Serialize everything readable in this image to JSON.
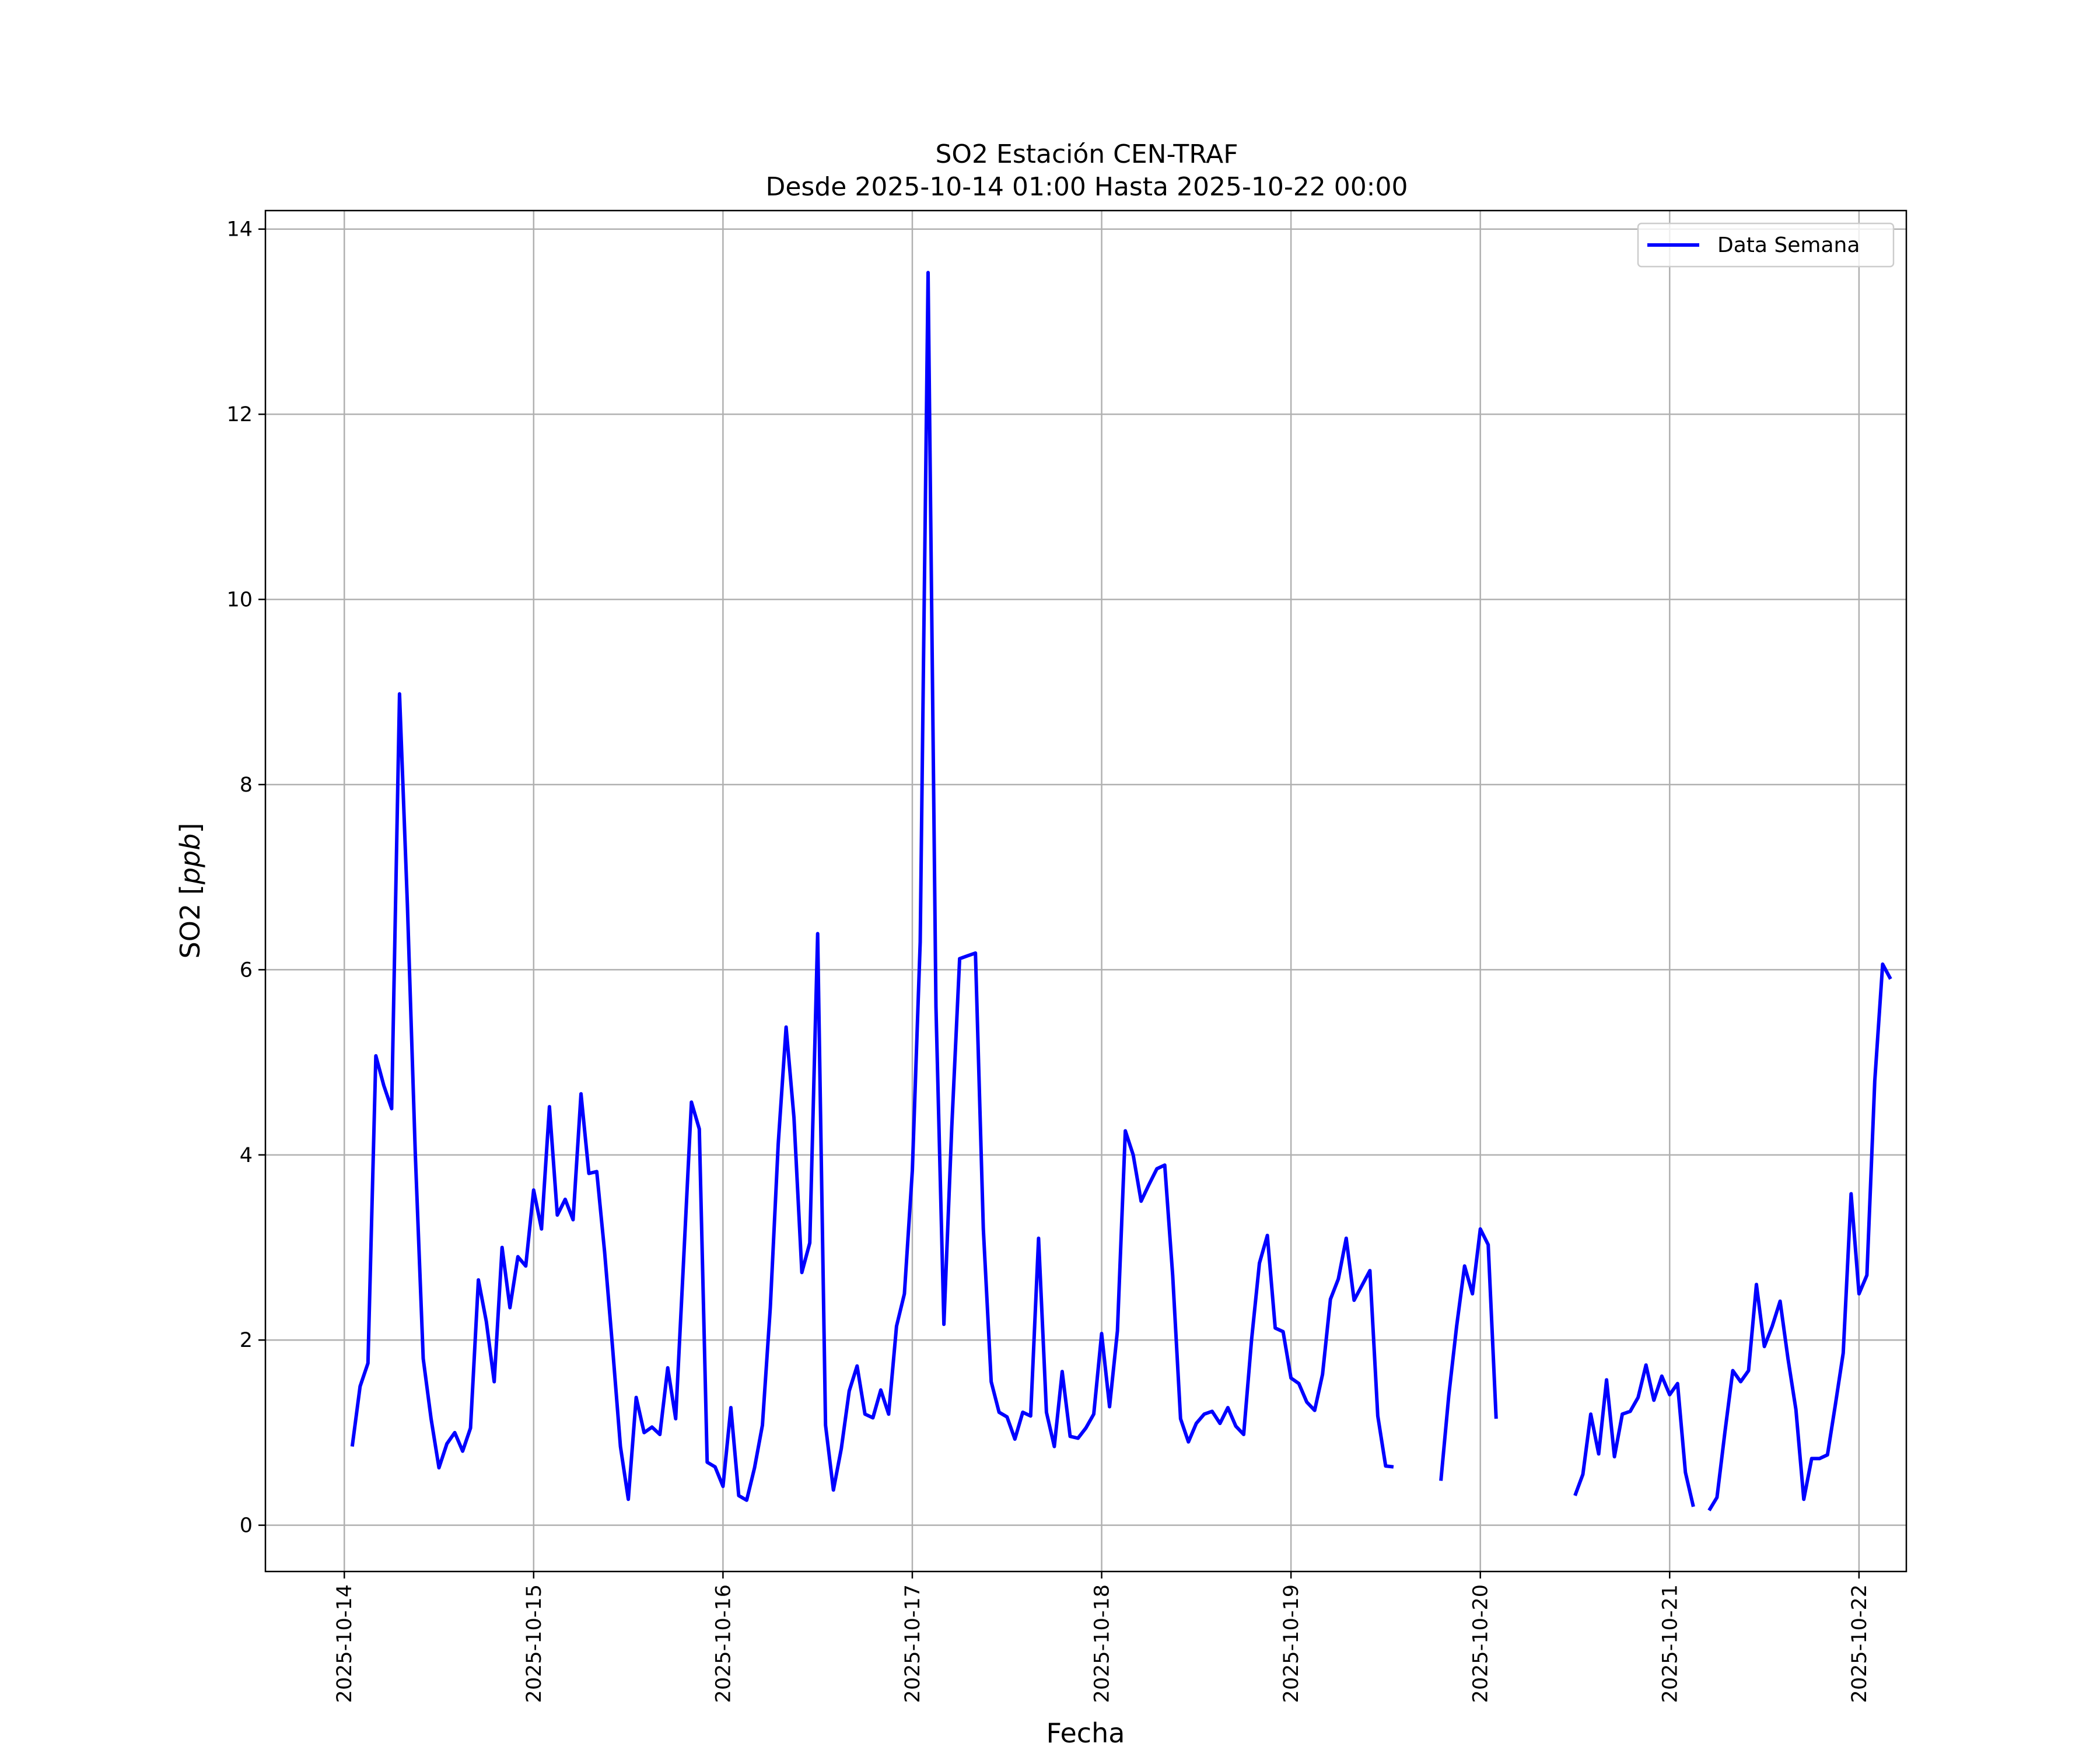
{
  "chart_data": {
    "type": "line",
    "title": "SO2 Estación CEN-TRAF",
    "subtitle": "Desde 2025-10-14 01:00 Hasta 2025-10-22 00:00",
    "xlabel": "Fecha",
    "ylabel": "SO2 [ppb]",
    "ylabel_prefix": "SO2 [",
    "ylabel_unit": "ppb",
    "ylabel_suffix": "]",
    "x_start": "2025-10-14 01:00",
    "x_step_hours": 1,
    "xlim": [
      "2025-10-13 14:00",
      "2025-10-22 06:00"
    ],
    "ylim": [
      -0.5,
      14.2
    ],
    "x_ticks": [
      "2025-10-14",
      "2025-10-15",
      "2025-10-16",
      "2025-10-17",
      "2025-10-18",
      "2025-10-19",
      "2025-10-20",
      "2025-10-21",
      "2025-10-22"
    ],
    "y_ticks": [
      "0",
      "2",
      "4",
      "6",
      "8",
      "10",
      "12",
      "14"
    ],
    "grid": true,
    "legend_position": "upper right",
    "series": [
      {
        "name": "Data Semana",
        "color": "#0000ff",
        "values": [
          0.85,
          1.5,
          1.75,
          5.07,
          4.75,
          4.5,
          8.98,
          6.7,
          4.0,
          1.8,
          1.15,
          0.62,
          0.88,
          1.0,
          0.8,
          1.05,
          2.65,
          2.2,
          1.55,
          3.0,
          2.35,
          2.9,
          2.8,
          3.62,
          3.2,
          4.52,
          3.35,
          3.52,
          3.3,
          4.66,
          3.8,
          3.82,
          2.95,
          1.92,
          0.85,
          0.28,
          1.38,
          1.0,
          1.06,
          0.98,
          1.7,
          1.15,
          2.85,
          4.57,
          4.28,
          0.68,
          0.63,
          0.42,
          1.27,
          0.32,
          0.27,
          0.62,
          1.08,
          2.35,
          4.12,
          5.38,
          4.4,
          2.73,
          3.05,
          6.39,
          1.08,
          0.38,
          0.83,
          1.45,
          1.72,
          1.2,
          1.16,
          1.46,
          1.2,
          2.15,
          2.5,
          3.83,
          6.3,
          13.53,
          5.6,
          2.17,
          4.3,
          6.12,
          6.15,
          6.18,
          3.2,
          1.55,
          1.22,
          1.17,
          0.93,
          1.22,
          1.18,
          3.1,
          1.22,
          0.85,
          1.66,
          0.96,
          0.94,
          1.05,
          1.2,
          2.07,
          1.28,
          2.1,
          4.26,
          4.0,
          3.5,
          3.68,
          3.85,
          3.89,
          2.7,
          1.15,
          0.9,
          1.1,
          1.2,
          1.23,
          1.1,
          1.27,
          1.07,
          0.98,
          2.0,
          2.83,
          3.13,
          2.13,
          2.09,
          1.59,
          1.53,
          1.33,
          1.24,
          1.63,
          2.44,
          2.66,
          3.1,
          2.43,
          2.59,
          2.75,
          1.18,
          0.64,
          0.63,
          null,
          null,
          null,
          null,
          null,
          0.48,
          1.4,
          2.15,
          2.8,
          2.5,
          3.2,
          3.03,
          1.15,
          null,
          null,
          null,
          null,
          null,
          null,
          null,
          null,
          null,
          0.32,
          0.55,
          1.2,
          0.77,
          1.57,
          0.74,
          1.2,
          1.23,
          1.38,
          1.73,
          1.35,
          1.61,
          1.41,
          1.53,
          0.57,
          0.2,
          null,
          0.16,
          0.3,
          1.0,
          1.67,
          1.55,
          1.67,
          2.6,
          1.93,
          2.15,
          2.42,
          1.8,
          1.25,
          0.28,
          0.72,
          0.72,
          0.76,
          1.3,
          1.86,
          3.58,
          2.5,
          2.7,
          4.8,
          6.06,
          5.9
        ]
      }
    ]
  }
}
